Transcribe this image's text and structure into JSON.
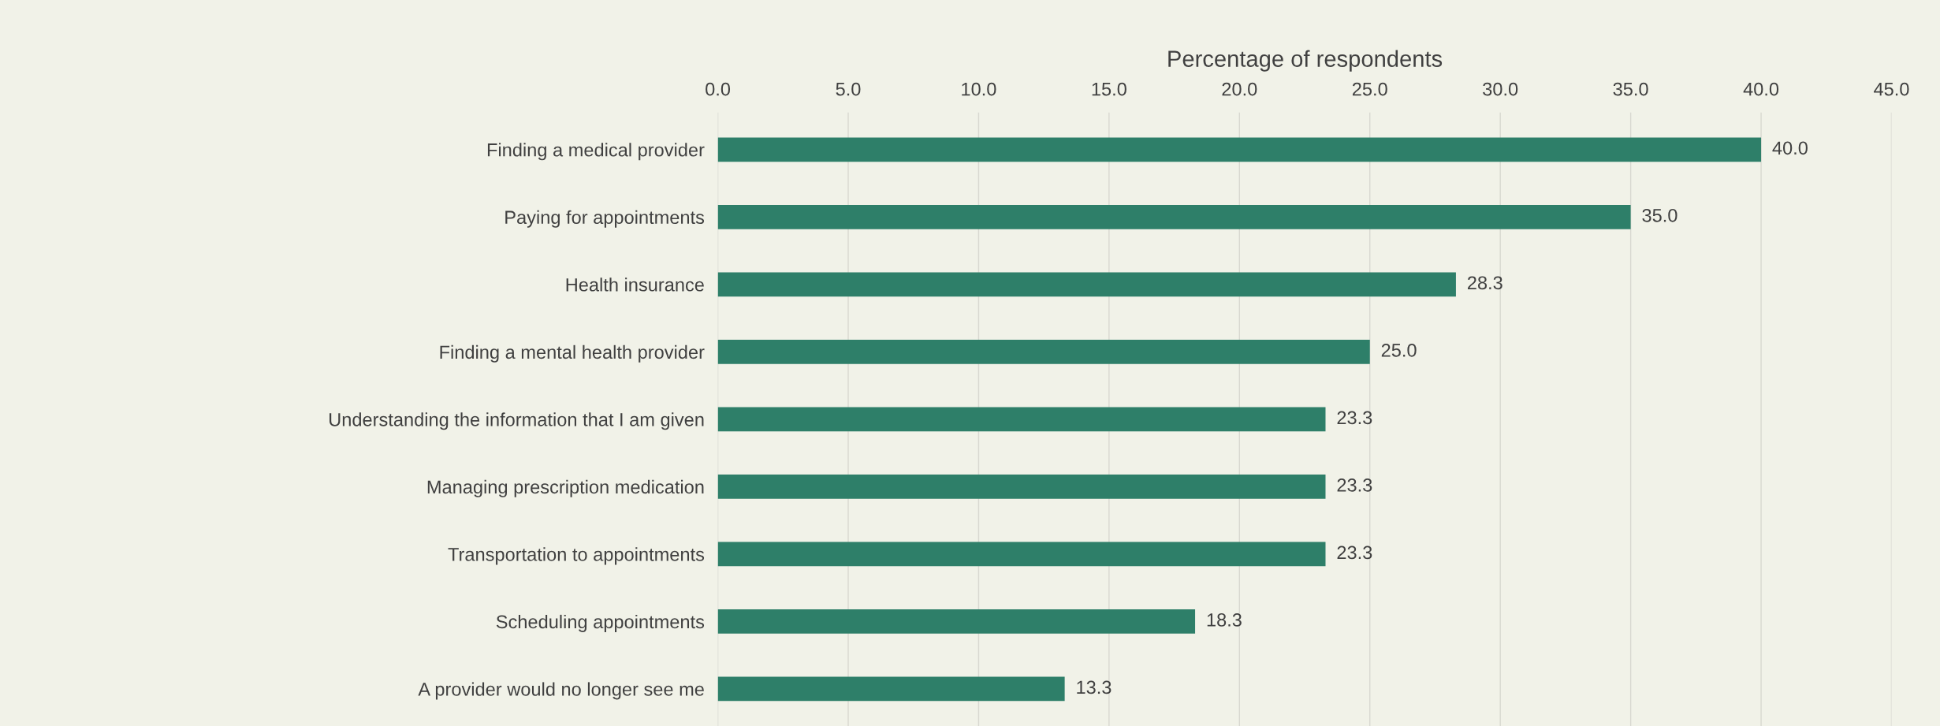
{
  "chart_data": {
    "type": "bar",
    "orientation": "horizontal",
    "xlabel": "Percentage of respondents",
    "categories": [
      "Finding a medical provider",
      "Paying for appointments",
      "Health insurance",
      "Finding a mental health provider",
      "Understanding the information that I am given",
      "Managing prescription medication",
      "Transportation to appointments",
      "Scheduling appointments",
      "A provider would no longer see me"
    ],
    "values": [
      40.0,
      35.0,
      28.3,
      25.0,
      23.3,
      23.3,
      23.3,
      18.3,
      13.3
    ],
    "color": "#2e7f69",
    "value_labels": [
      "40.0",
      "35.0",
      "28.3",
      "25.0",
      "23.3",
      "23.3",
      "23.3",
      "18.3",
      "13.3"
    ],
    "xlim": [
      0,
      45
    ],
    "xticks": [
      {
        "value": 0,
        "label": "0.0"
      },
      {
        "value": 5,
        "label": "5.0"
      },
      {
        "value": 10,
        "label": "10.0"
      },
      {
        "value": 15,
        "label": "15.0"
      },
      {
        "value": 20,
        "label": "20.0"
      },
      {
        "value": 25,
        "label": "25.0"
      },
      {
        "value": 30,
        "label": "30.0"
      },
      {
        "value": 35,
        "label": "35.0"
      },
      {
        "value": 40,
        "label": "40.0"
      },
      {
        "value": 45,
        "label": "45.0"
      }
    ],
    "grid": "x"
  }
}
